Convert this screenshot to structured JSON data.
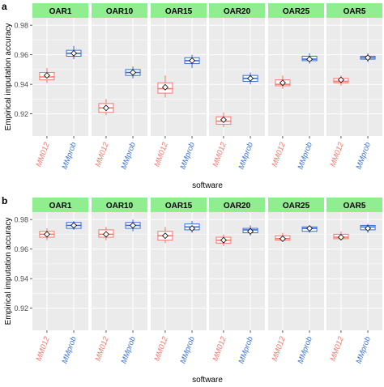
{
  "panel_labels": [
    "a",
    "b"
  ],
  "colors": {
    "mm012": "#F8766D",
    "mmprob": "#3B6FD6",
    "strip": "#90EE90",
    "panel_bg": "#EBEBEB",
    "grid": "#FFFFFF",
    "axis_text": "#4D4D4D"
  },
  "chart_data": [
    {
      "type": "box",
      "panel_label": "a",
      "facets": [
        "OAR1",
        "OAR10",
        "OAR15",
        "OAR20",
        "OAR25",
        "OAR5"
      ],
      "categories": [
        "MM012",
        "MMprob"
      ],
      "xlabel": "software",
      "ylabel": "Empirical imputation accuracy",
      "ylim": [
        0.905,
        0.985
      ],
      "yticks": [
        0.92,
        0.94,
        0.96,
        0.98
      ],
      "ytick_labels": [
        "0.92",
        "0.94",
        "0.96",
        "0.98"
      ],
      "grid": true,
      "series": [
        {
          "name": "MM012",
          "boxes": [
            {
              "whislo": 0.941,
              "q1": 0.943,
              "med": 0.945,
              "q3": 0.948,
              "whishi": 0.951,
              "mean": 0.946
            },
            {
              "whislo": 0.919,
              "q1": 0.921,
              "med": 0.924,
              "q3": 0.927,
              "whishi": 0.93,
              "mean": 0.924
            },
            {
              "whislo": 0.931,
              "q1": 0.934,
              "med": 0.937,
              "q3": 0.941,
              "whishi": 0.946,
              "mean": 0.938
            },
            {
              "whislo": 0.911,
              "q1": 0.913,
              "med": 0.915,
              "q3": 0.918,
              "whishi": 0.921,
              "mean": 0.916
            },
            {
              "whislo": 0.937,
              "q1": 0.939,
              "med": 0.94,
              "q3": 0.943,
              "whishi": 0.946,
              "mean": 0.941
            },
            {
              "whislo": 0.939,
              "q1": 0.941,
              "med": 0.942,
              "q3": 0.944,
              "whishi": 0.946,
              "mean": 0.943
            }
          ]
        },
        {
          "name": "MMprob",
          "boxes": [
            {
              "whislo": 0.957,
              "q1": 0.959,
              "med": 0.961,
              "q3": 0.963,
              "whishi": 0.966,
              "mean": 0.961
            },
            {
              "whislo": 0.944,
              "q1": 0.946,
              "med": 0.948,
              "q3": 0.95,
              "whishi": 0.952,
              "mean": 0.948
            },
            {
              "whislo": 0.951,
              "q1": 0.954,
              "med": 0.956,
              "q3": 0.958,
              "whishi": 0.96,
              "mean": 0.956
            },
            {
              "whislo": 0.94,
              "q1": 0.942,
              "med": 0.944,
              "q3": 0.946,
              "whishi": 0.948,
              "mean": 0.944
            },
            {
              "whislo": 0.954,
              "q1": 0.956,
              "med": 0.957,
              "q3": 0.959,
              "whishi": 0.961,
              "mean": 0.957
            },
            {
              "whislo": 0.955,
              "q1": 0.957,
              "med": 0.958,
              "q3": 0.959,
              "whishi": 0.961,
              "mean": 0.958
            }
          ]
        }
      ]
    },
    {
      "type": "box",
      "panel_label": "b",
      "facets": [
        "OAR1",
        "OAR10",
        "OAR15",
        "OAR20",
        "OAR25",
        "OAR5"
      ],
      "categories": [
        "MM012",
        "MMprob"
      ],
      "xlabel": "software",
      "ylabel": "Empirical imputation accuracy",
      "ylim": [
        0.905,
        0.985
      ],
      "yticks": [
        0.92,
        0.94,
        0.96,
        0.98
      ],
      "ytick_labels": [
        "0.92",
        "0.94",
        "0.96",
        "0.98"
      ],
      "grid": true,
      "series": [
        {
          "name": "MM012",
          "boxes": [
            {
              "whislo": 0.966,
              "q1": 0.968,
              "med": 0.97,
              "q3": 0.972,
              "whishi": 0.974,
              "mean": 0.97
            },
            {
              "whislo": 0.966,
              "q1": 0.968,
              "med": 0.97,
              "q3": 0.973,
              "whishi": 0.975,
              "mean": 0.97
            },
            {
              "whislo": 0.964,
              "q1": 0.966,
              "med": 0.969,
              "q3": 0.972,
              "whishi": 0.975,
              "mean": 0.969
            },
            {
              "whislo": 0.962,
              "q1": 0.964,
              "med": 0.966,
              "q3": 0.968,
              "whishi": 0.97,
              "mean": 0.966
            },
            {
              "whislo": 0.965,
              "q1": 0.966,
              "med": 0.967,
              "q3": 0.969,
              "whishi": 0.971,
              "mean": 0.967
            },
            {
              "whislo": 0.966,
              "q1": 0.967,
              "med": 0.968,
              "q3": 0.97,
              "whishi": 0.972,
              "mean": 0.968
            }
          ]
        },
        {
          "name": "MMprob",
          "boxes": [
            {
              "whislo": 0.973,
              "q1": 0.974,
              "med": 0.976,
              "q3": 0.978,
              "whishi": 0.979,
              "mean": 0.976
            },
            {
              "whislo": 0.972,
              "q1": 0.974,
              "med": 0.976,
              "q3": 0.978,
              "whishi": 0.98,
              "mean": 0.976
            },
            {
              "whislo": 0.971,
              "q1": 0.973,
              "med": 0.975,
              "q3": 0.977,
              "whishi": 0.979,
              "mean": 0.974
            },
            {
              "whislo": 0.969,
              "q1": 0.971,
              "med": 0.973,
              "q3": 0.974,
              "whishi": 0.976,
              "mean": 0.972
            },
            {
              "whislo": 0.971,
              "q1": 0.972,
              "med": 0.974,
              "q3": 0.975,
              "whishi": 0.976,
              "mean": 0.974
            },
            {
              "whislo": 0.971,
              "q1": 0.973,
              "med": 0.975,
              "q3": 0.976,
              "whishi": 0.977,
              "mean": 0.974
            }
          ]
        }
      ]
    }
  ]
}
